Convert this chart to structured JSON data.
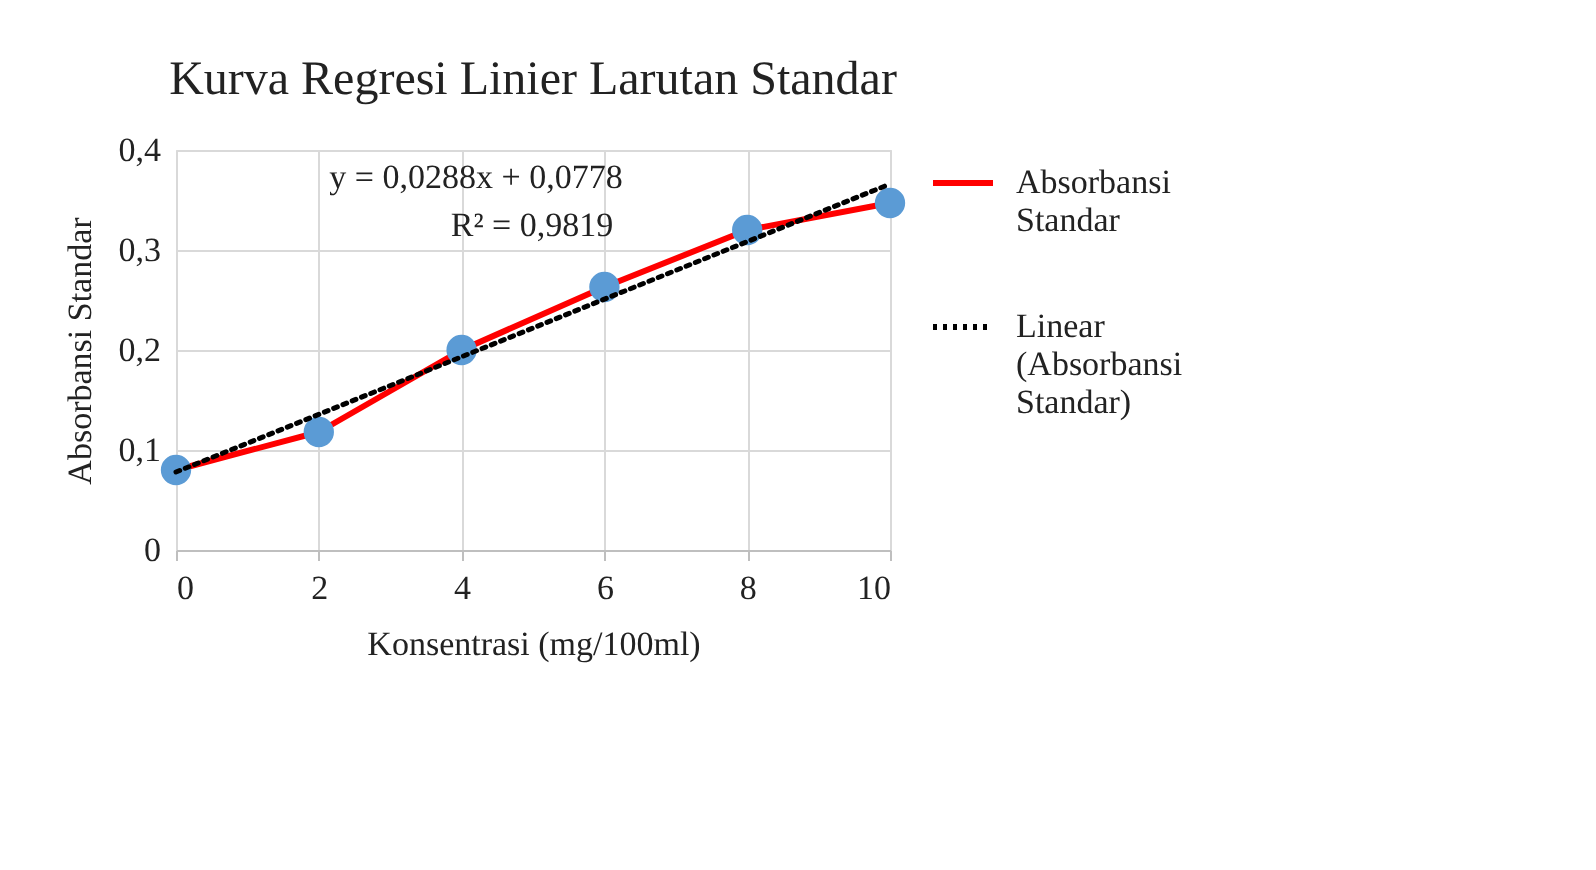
{
  "chart_data": {
    "type": "line",
    "title": "Kurva Regresi Linier Larutan Standar",
    "xlabel": "Konsentrasi (mg/100ml)",
    "ylabel": "Absorbansi Standar",
    "x": [
      0,
      2,
      4,
      6,
      8,
      10
    ],
    "series": [
      {
        "name": "Absorbansi Standar",
        "color": "#ff0000",
        "values": [
          0.08,
          0.118,
          0.2,
          0.263,
          0.32,
          0.347
        ],
        "marker": "circle",
        "colors": [
          "#5b9bd5",
          "#5b9bd5",
          "#5b9bd5",
          "#5b9bd5",
          "#5b9bd5",
          "#5b9bd5"
        ],
        "line_style": "solid"
      },
      {
        "name": "Linear (Absorbansi Standar)",
        "color": "#000000",
        "type": "line",
        "x": [
          0,
          10
        ],
        "values": [
          0.078,
          0.366
        ],
        "marker": "none",
        "line_style": "dotted"
      }
    ],
    "annotations": [
      "y = 0,0288x + 0,0778",
      "R² = 0,9819"
    ],
    "xlim": [
      0,
      10
    ],
    "xticks": [
      0,
      2,
      4,
      6,
      8,
      10
    ],
    "ylim": [
      0,
      0.4
    ],
    "yticks": [
      {
        "value": 0,
        "label": "0"
      },
      {
        "value": 0.1,
        "label": "0,1"
      },
      {
        "value": 0.2,
        "label": "0,2"
      },
      {
        "value": 0.3,
        "label": "0,3"
      },
      {
        "value": 0.4,
        "label": "0,4"
      }
    ],
    "grid": true,
    "legend": "right"
  }
}
